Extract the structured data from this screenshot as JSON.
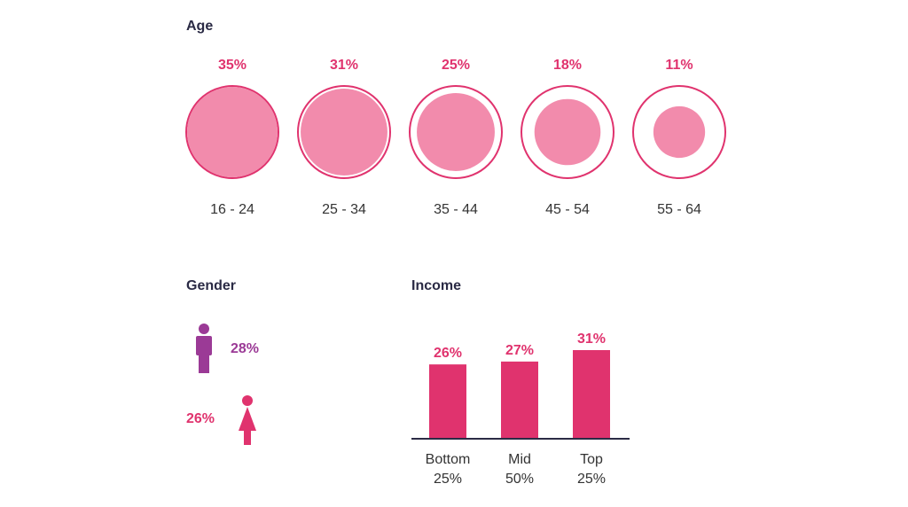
{
  "colors": {
    "accent": "#e0336e",
    "circle_fill": "#f28bac",
    "ring_stroke": "#e0336e",
    "male": "#9b3a96",
    "female": "#e0336e",
    "axis": "#2b2b45",
    "text": "#333333"
  },
  "sections": {
    "age_title": "Age",
    "gender_title": "Gender",
    "income_title": "Income"
  },
  "gender": {
    "male": {
      "icon": "male-person-icon",
      "value": "28%"
    },
    "female": {
      "icon": "female-person-icon",
      "value": "26%"
    }
  },
  "chart_data": [
    {
      "type": "bubble",
      "title": "Age",
      "categories": [
        "16 - 24",
        "25 - 34",
        "35 - 44",
        "45 - 54",
        "55 - 64"
      ],
      "values": [
        35,
        31,
        25,
        18,
        11
      ],
      "value_labels": [
        "35%",
        "31%",
        "25%",
        "18%",
        "11%"
      ]
    },
    {
      "type": "bar",
      "title": "Income",
      "categories": [
        "Bottom 25%",
        "Mid 50%",
        "Top 25%"
      ],
      "category_lines": [
        [
          "Bottom",
          "25%"
        ],
        [
          "Mid",
          "50%"
        ],
        [
          "Top",
          "25%"
        ]
      ],
      "values": [
        26,
        27,
        31
      ],
      "value_labels": [
        "26%",
        "27%",
        "31%"
      ]
    }
  ]
}
